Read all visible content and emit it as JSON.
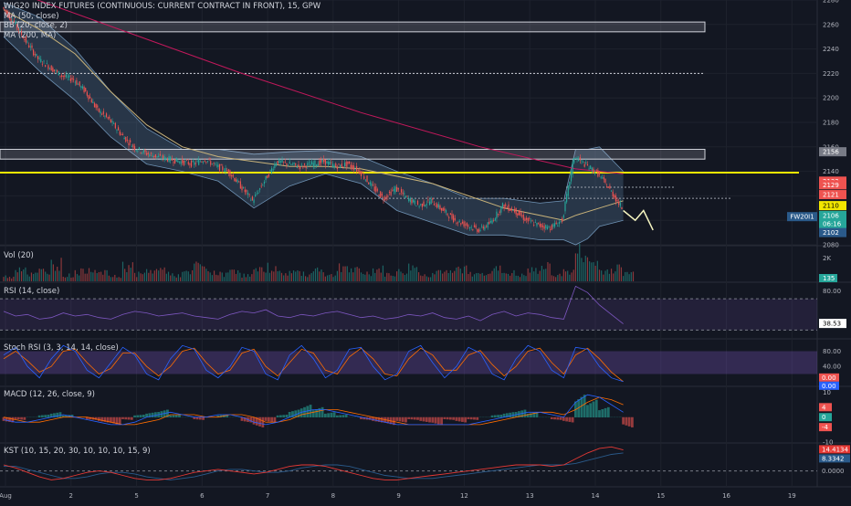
{
  "legends": {
    "main": [
      "WIG20 INDEX FUTURES (CONTINUOUS: CURRENT CONTRACT IN FRONT), 15, GPW",
      "MA (50, close)",
      "BB (20, close, 2)",
      "MA (200, MA)"
    ],
    "vol": "Vol (20)",
    "rsi": "RSI (14, close)",
    "stoch": "Stoch RSI (3, 3, 14, 14, close)",
    "macd": "MACD (12, 26, close, 9)",
    "kst": "KST (10, 15, 20, 30, 10, 10, 10, 15, 9)"
  },
  "colors": {
    "background": "#131722",
    "grid": "#1e222d",
    "up": "#26a69a",
    "down": "#ef5350",
    "bb_fill": "#4f6f8f",
    "ma50": "#c9b37a",
    "ma200": "#c2185b",
    "yellow": "#f2e600",
    "projection": "#f5f5c0",
    "rsi_line": "#7e57c2",
    "stoch_k": "#2962ff",
    "stoch_d": "#ff6d00",
    "kst_line": "#e53935",
    "kst_signal": "#2a5a8a"
  },
  "chart_data": [
    {
      "id": "main",
      "type": "candlestick",
      "ylim": [
        2080,
        2280
      ],
      "yticks": [
        2280,
        2260,
        2240,
        2220,
        2200,
        2180,
        2160,
        2140,
        2120,
        2100,
        2080
      ],
      "x_labels": [
        "Aug",
        "2",
        "5",
        "6",
        "7",
        "8",
        "9",
        "12",
        "13",
        "14",
        "15",
        "16",
        "19"
      ],
      "close_path": [
        [
          0,
          2274
        ],
        [
          1,
          2262
        ],
        [
          2,
          2246
        ],
        [
          3,
          2232
        ],
        [
          4,
          2225
        ],
        [
          5,
          2218
        ],
        [
          6,
          2215
        ],
        [
          7,
          2205
        ],
        [
          8,
          2190
        ],
        [
          9,
          2182
        ],
        [
          10,
          2170
        ],
        [
          11,
          2160
        ],
        [
          12,
          2155
        ],
        [
          13,
          2152
        ],
        [
          14,
          2150
        ],
        [
          15,
          2148
        ],
        [
          16,
          2146
        ],
        [
          17,
          2150
        ],
        [
          18,
          2144
        ],
        [
          19,
          2140
        ],
        [
          20,
          2128
        ],
        [
          21,
          2116
        ],
        [
          22,
          2132
        ],
        [
          23,
          2148
        ],
        [
          24,
          2146
        ],
        [
          25,
          2144
        ],
        [
          26,
          2146
        ],
        [
          27,
          2148
        ],
        [
          28,
          2144
        ],
        [
          29,
          2146
        ],
        [
          30,
          2140
        ],
        [
          31,
          2128
        ],
        [
          32,
          2118
        ],
        [
          33,
          2126
        ],
        [
          34,
          2118
        ],
        [
          35,
          2112
        ],
        [
          36,
          2116
        ],
        [
          37,
          2108
        ],
        [
          38,
          2100
        ],
        [
          39,
          2096
        ],
        [
          40,
          2092
        ],
        [
          41,
          2098
        ],
        [
          42,
          2112
        ],
        [
          43,
          2108
        ],
        [
          44,
          2100
        ],
        [
          45,
          2096
        ],
        [
          46,
          2094
        ],
        [
          47,
          2100
        ],
        [
          48,
          2152
        ],
        [
          49,
          2145
        ],
        [
          50,
          2138
        ],
        [
          51,
          2125
        ],
        [
          52,
          2110
        ]
      ],
      "bb_upper_path": [
        [
          0,
          2278
        ],
        [
          3,
          2266
        ],
        [
          6,
          2240
        ],
        [
          9,
          2205
        ],
        [
          12,
          2175
        ],
        [
          15,
          2158
        ],
        [
          18,
          2158
        ],
        [
          21,
          2154
        ],
        [
          24,
          2156
        ],
        [
          27,
          2157
        ],
        [
          30,
          2152
        ],
        [
          33,
          2140
        ],
        [
          36,
          2130
        ],
        [
          39,
          2118
        ],
        [
          42,
          2118
        ],
        [
          45,
          2114
        ],
        [
          47,
          2116
        ],
        [
          48,
          2158
        ],
        [
          49,
          2158
        ],
        [
          50,
          2160
        ],
        [
          52,
          2140
        ]
      ],
      "bb_lower_path": [
        [
          0,
          2250
        ],
        [
          3,
          2222
        ],
        [
          6,
          2198
        ],
        [
          9,
          2168
        ],
        [
          12,
          2146
        ],
        [
          15,
          2140
        ],
        [
          18,
          2132
        ],
        [
          21,
          2110
        ],
        [
          24,
          2128
        ],
        [
          27,
          2138
        ],
        [
          30,
          2130
        ],
        [
          33,
          2108
        ],
        [
          36,
          2098
        ],
        [
          39,
          2088
        ],
        [
          42,
          2088
        ],
        [
          45,
          2084
        ],
        [
          47,
          2084
        ],
        [
          48,
          2080
        ],
        [
          49,
          2085
        ],
        [
          50,
          2095
        ],
        [
          52,
          2100
        ]
      ],
      "ma50_path": [
        [
          0,
          2272
        ],
        [
          3,
          2256
        ],
        [
          6,
          2236
        ],
        [
          9,
          2205
        ],
        [
          12,
          2178
        ],
        [
          15,
          2160
        ],
        [
          18,
          2152
        ],
        [
          21,
          2148
        ],
        [
          24,
          2144
        ],
        [
          27,
          2144
        ],
        [
          30,
          2142
        ],
        [
          33,
          2136
        ],
        [
          36,
          2130
        ],
        [
          39,
          2120
        ],
        [
          42,
          2110
        ],
        [
          45,
          2104
        ],
        [
          47,
          2100
        ],
        [
          48,
          2104
        ],
        [
          50,
          2110
        ],
        [
          52,
          2116
        ]
      ],
      "ma200_path": [
        [
          0,
          2290
        ],
        [
          10,
          2255
        ],
        [
          20,
          2220
        ],
        [
          30,
          2188
        ],
        [
          40,
          2160
        ],
        [
          48,
          2142
        ],
        [
          52,
          2138
        ]
      ],
      "projection_path": [
        [
          52,
          2108
        ],
        [
          53,
          2100
        ],
        [
          53.7,
          2108
        ],
        [
          54.5,
          2092
        ]
      ],
      "hlines": [
        {
          "label": "",
          "y": 2220,
          "style": "dotted",
          "color": "#d1d4dc"
        },
        {
          "label": "",
          "y": 2139,
          "style": "solid",
          "color": "#f2e600"
        },
        {
          "label": "",
          "y": 2127,
          "style": "dotted",
          "color": "#9aa0aa"
        },
        {
          "label": "",
          "y": 2118,
          "style": "dotted",
          "color": "#9aa0aa"
        }
      ],
      "boxes": [
        {
          "y1": 2262,
          "y2": 2254
        },
        {
          "y1": 2158,
          "y2": 2150
        }
      ],
      "price_tags": [
        {
          "text": "2156",
          "y": 2156,
          "bg": "#787b86",
          "fg": "#ffffff"
        },
        {
          "text": "2132",
          "y": 2132,
          "bg": "#ef5350",
          "fg": "#ffffff"
        },
        {
          "text": "2129",
          "y": 2129,
          "bg": "#ef5350",
          "fg": "#ffffff"
        },
        {
          "text": "2121",
          "y": 2121,
          "bg": "#ef5350",
          "fg": "#ffffff"
        },
        {
          "text": "2110",
          "y": 2112,
          "bg": "#f2e600",
          "fg": "#000000"
        },
        {
          "text": "2106",
          "y": 2104,
          "bg": "#26a69a",
          "fg": "#ffffff"
        },
        {
          "text": "06:16",
          "y": 2097,
          "bg": "#26a69a",
          "fg": "#ffffff"
        },
        {
          "text": "2102",
          "y": 2090,
          "bg": "#2a5a8a",
          "fg": "#ffffff"
        }
      ],
      "symbol_tag": "FW20I1"
    },
    {
      "id": "volume",
      "type": "bar",
      "ylim": [
        0,
        3
      ],
      "yticks": [
        {
          "label": "2K",
          "value": 2
        }
      ],
      "last_tag": "135",
      "values": [
        0.4,
        1.2,
        0.6,
        0.9,
        1.5,
        0.5,
        0.8,
        1.1,
        0.7,
        0.4,
        1.3,
        0.6,
        0.9,
        1.0,
        0.5,
        0.7,
        1.4,
        0.8,
        0.6,
        1.0,
        0.5,
        0.9,
        1.2,
        0.7,
        0.8,
        0.6,
        1.1,
        0.5,
        1.3,
        0.9,
        0.7,
        1.0,
        0.6,
        0.8,
        1.2,
        0.5,
        0.9,
        0.7,
        1.1,
        0.6,
        0.8,
        1.0,
        0.7,
        0.5,
        0.9,
        1.2,
        0.6,
        0.8,
        2.4,
        1.6,
        0.9,
        1.1,
        0.7
      ]
    },
    {
      "id": "rsi",
      "type": "line",
      "ylim": [
        20,
        90
      ],
      "yticks": [
        80
      ],
      "band": [
        30,
        70
      ],
      "last_tag": "38.53",
      "values": [
        54,
        48,
        50,
        44,
        46,
        52,
        48,
        50,
        46,
        44,
        50,
        54,
        52,
        48,
        50,
        52,
        48,
        46,
        44,
        50,
        54,
        52,
        56,
        48,
        46,
        50,
        48,
        52,
        54,
        50,
        46,
        48,
        44,
        46,
        50,
        48,
        52,
        46,
        44,
        48,
        42,
        50,
        54,
        48,
        52,
        50,
        46,
        44,
        86,
        78,
        62,
        50,
        38
      ]
    },
    {
      "id": "stoch_rsi",
      "type": "line",
      "ylim": [
        0,
        100
      ],
      "yticks": [
        80,
        40
      ],
      "band": [
        20,
        80
      ],
      "last_tags": [
        "0.00",
        "0.00"
      ],
      "k_values": [
        70,
        90,
        40,
        10,
        60,
        95,
        80,
        30,
        10,
        50,
        90,
        70,
        20,
        5,
        60,
        95,
        85,
        30,
        10,
        40,
        90,
        80,
        20,
        5,
        70,
        95,
        60,
        10,
        30,
        85,
        90,
        40,
        5,
        20,
        80,
        95,
        50,
        10,
        40,
        90,
        75,
        20,
        5,
        60,
        95,
        80,
        30,
        10,
        90,
        85,
        40,
        10,
        0
      ],
      "d_values": [
        60,
        80,
        55,
        25,
        40,
        80,
        85,
        50,
        20,
        35,
        75,
        75,
        40,
        15,
        40,
        80,
        88,
        50,
        20,
        30,
        75,
        85,
        40,
        15,
        50,
        85,
        75,
        30,
        20,
        65,
        88,
        60,
        20,
        15,
        60,
        88,
        70,
        30,
        30,
        70,
        82,
        45,
        15,
        40,
        80,
        88,
        50,
        20,
        70,
        88,
        60,
        25,
        0
      ]
    },
    {
      "id": "macd",
      "type": "histogram",
      "ylim": [
        -10,
        12
      ],
      "yticks": [
        10,
        0,
        -10
      ],
      "last_tags": [
        "4",
        "0",
        "-4"
      ],
      "hist": [
        -2,
        -1,
        0,
        1,
        2,
        1,
        0,
        -1,
        -2,
        -3,
        -1,
        1,
        2,
        3,
        1,
        0,
        -1,
        0,
        1,
        0,
        -2,
        -4,
        -2,
        1,
        3,
        5,
        4,
        2,
        1,
        0,
        -1,
        -2,
        -3,
        -2,
        -1,
        -2,
        -3,
        -1,
        -2,
        -1,
        0,
        1,
        2,
        3,
        2,
        0,
        -1,
        -2,
        9,
        7,
        4,
        0,
        -4
      ],
      "macd_line": [
        -1,
        -2,
        -2,
        -1,
        0,
        1,
        0,
        -1,
        -2,
        -3,
        -3,
        -2,
        0,
        1,
        2,
        1,
        0,
        0,
        1,
        1,
        0,
        -2,
        -3,
        -2,
        0,
        2,
        3,
        3,
        2,
        1,
        0,
        -1,
        -2,
        -3,
        -3,
        -3,
        -3,
        -3,
        -3,
        -3,
        -2,
        -1,
        0,
        1,
        2,
        2,
        1,
        0,
        6,
        9,
        8,
        5,
        2
      ],
      "signal_line": [
        0,
        -1,
        -2,
        -2,
        -1,
        0,
        0,
        0,
        -1,
        -2,
        -3,
        -3,
        -2,
        -1,
        1,
        1,
        1,
        0,
        0,
        1,
        1,
        0,
        -2,
        -2,
        -1,
        1,
        2,
        3,
        3,
        2,
        1,
        0,
        -1,
        -2,
        -3,
        -3,
        -3,
        -3,
        -3,
        -3,
        -3,
        -2,
        -1,
        0,
        1,
        2,
        2,
        1,
        3,
        6,
        8,
        7,
        5
      ]
    },
    {
      "id": "kst",
      "type": "line",
      "ylim": [
        -10,
        18
      ],
      "yticks": [
        0
      ],
      "last_tags": [
        "14.4134",
        "8.3342",
        "0.0000"
      ],
      "kst_values": [
        4,
        2,
        -1,
        -4,
        -6,
        -5,
        -3,
        -1,
        0,
        -1,
        -3,
        -5,
        -6,
        -6,
        -5,
        -3,
        -1,
        0,
        1,
        0,
        -1,
        -2,
        -1,
        1,
        3,
        4,
        4,
        3,
        1,
        -1,
        -3,
        -5,
        -6,
        -6,
        -5,
        -4,
        -3,
        -2,
        -1,
        0,
        1,
        2,
        3,
        4,
        4,
        4,
        3,
        4,
        8,
        12,
        15,
        16,
        14
      ],
      "signal_values": [
        3,
        3,
        1,
        -1,
        -3,
        -5,
        -5,
        -4,
        -2,
        -1,
        -1,
        -2,
        -4,
        -5,
        -6,
        -5,
        -4,
        -2,
        0,
        1,
        1,
        0,
        -1,
        -1,
        0,
        2,
        3,
        4,
        4,
        3,
        1,
        -1,
        -3,
        -4,
        -5,
        -5,
        -5,
        -4,
        -3,
        -2,
        -1,
        0,
        1,
        2,
        3,
        4,
        4,
        4,
        5,
        7,
        9,
        11,
        12
      ]
    }
  ]
}
